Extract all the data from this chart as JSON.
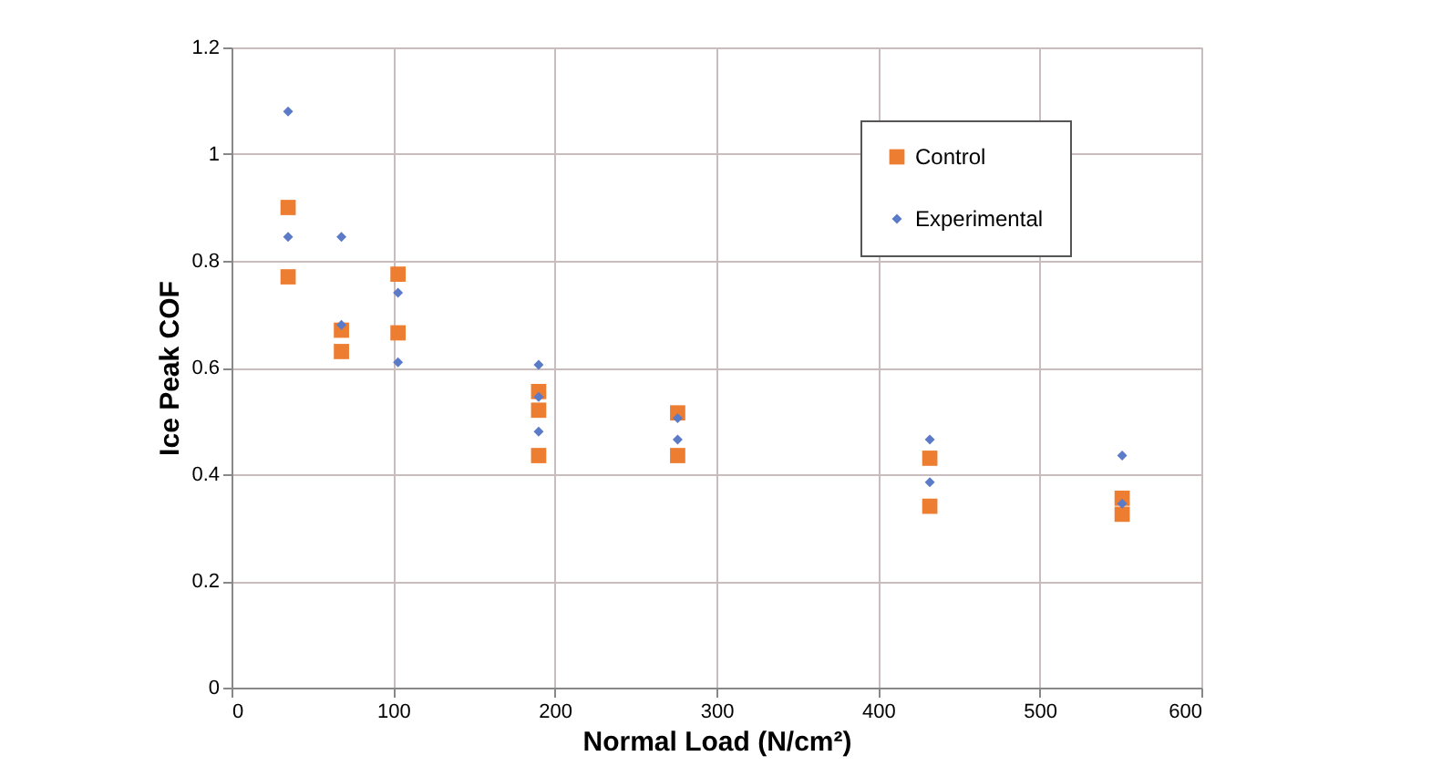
{
  "chart_data": {
    "type": "scatter",
    "xlabel": "Normal Load (N/cm²)",
    "ylabel": "Ice Peak COF",
    "xlim": [
      0,
      600
    ],
    "xticks": [
      0,
      100,
      200,
      300,
      400,
      500,
      600
    ],
    "ylim": [
      0,
      1.2
    ],
    "yticks": [
      0,
      0.2,
      0.4,
      0.6,
      0.8,
      1,
      1.2
    ],
    "grid": true,
    "legend": "top right",
    "series": [
      {
        "name": "Control",
        "color": "#ed7d31",
        "marker": "square",
        "x": [
          35,
          35,
          68,
          68,
          103,
          103,
          190,
          190,
          190,
          276,
          276,
          432,
          432,
          551,
          551
        ],
        "values": [
          0.9,
          0.77,
          0.67,
          0.63,
          0.775,
          0.665,
          0.555,
          0.52,
          0.435,
          0.515,
          0.435,
          0.43,
          0.34,
          0.355,
          0.325
        ]
      },
      {
        "name": "Experimental",
        "color": "#5b7bc8",
        "marker": "diamond",
        "x": [
          35,
          35,
          68,
          68,
          103,
          103,
          190,
          190,
          190,
          276,
          276,
          432,
          432,
          551,
          551
        ],
        "values": [
          1.08,
          0.845,
          0.845,
          0.68,
          0.74,
          0.61,
          0.605,
          0.545,
          0.48,
          0.505,
          0.465,
          0.465,
          0.385,
          0.435,
          0.345
        ]
      }
    ]
  }
}
